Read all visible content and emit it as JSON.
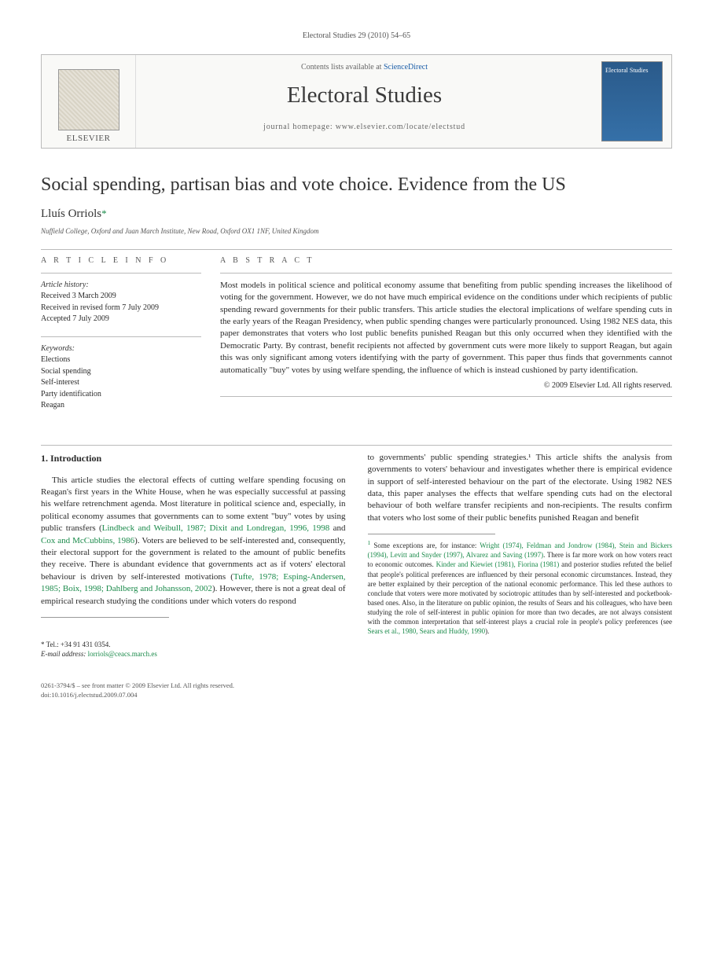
{
  "running_header": "Electoral Studies 29 (2010) 54–65",
  "masthead": {
    "publisher": "ELSEVIER",
    "contents_prefix": "Contents lists available at ",
    "contents_link": "ScienceDirect",
    "journal": "Electoral Studies",
    "homepage_prefix": "journal homepage: ",
    "homepage_url": "www.elsevier.com/locate/electstud",
    "cover_text": "Electoral Studies"
  },
  "title": "Social spending, partisan bias and vote choice. Evidence from the US",
  "author": "Lluís Orriols",
  "author_marker": "*",
  "affiliation": "Nuffield College, Oxford and Juan March Institute, New Road, Oxford OX1 1NF, United Kingdom",
  "info": {
    "label": "A R T I C L E   I N F O",
    "history_heading": "Article history:",
    "history": [
      "Received 3 March 2009",
      "Received in revised form 7 July 2009",
      "Accepted 7 July 2009"
    ],
    "keywords_heading": "Keywords:",
    "keywords": [
      "Elections",
      "Social spending",
      "Self-interest",
      "Party identification",
      "Reagan"
    ]
  },
  "abstract": {
    "label": "A B S T R A C T",
    "text": "Most models in political science and political economy assume that benefiting from public spending increases the likelihood of voting for the government. However, we do not have much empirical evidence on the conditions under which recipients of public spending reward governments for their public transfers. This article studies the electoral implications of welfare spending cuts in the early years of the Reagan Presidency, when public spending changes were particularly pronounced. Using 1982 NES data, this paper demonstrates that voters who lost public benefits punished Reagan but this only occurred when they identified with the Democratic Party. By contrast, benefit recipients not affected by government cuts were more likely to support Reagan, but again this was only significant among voters identifying with the party of government. This paper thus finds that governments cannot automatically \"buy\" votes by using welfare spending, the influence of which is instead cushioned by party identification.",
    "copyright": "© 2009 Elsevier Ltd. All rights reserved."
  },
  "body": {
    "heading": "1. Introduction",
    "col1_text_pre": "This article studies the electoral effects of cutting welfare spending focusing on Reagan's first years in the White House, when he was especially successful at passing his welfare retrenchment agenda. Most literature in political science and, especially, in political economy assumes that governments can to some extent \"buy\" votes by using public transfers (",
    "col1_cite1": "Lindbeck and Weibull, 1987; Dixit and Londregan, 1996, 1998",
    "col1_mid1": " and ",
    "col1_cite2": "Cox and McCubbins, 1986",
    "col1_mid2": "). Voters are believed to be self-interested and, consequently, their electoral support for the government is related to the amount of public benefits they receive. There is abundant evidence that governments act as if voters' electoral behaviour is driven by self-interested motivations (",
    "col1_cite3": "Tufte, 1978; Esping-Andersen, 1985; Boix, 1998; Dahlberg and Johansson, 2002",
    "col1_text_post": "). However, there is not a great deal of empirical research studying the conditions under which voters do respond",
    "col2_text": "to governments' public spending strategies.¹ This article shifts the analysis from governments to voters' behaviour and investigates whether there is empirical evidence in support of self-interested behaviour on the part of the electorate. Using 1982 NES data, this paper analyses the effects that welfare spending cuts had on the electoral behaviour of both welfare transfer recipients and non-recipients. The results confirm that voters who lost some of their public benefits punished Reagan and benefit"
  },
  "footnote": {
    "marker": "1",
    "text_pre": " Some exceptions are, for instance: ",
    "cite1": "Wright (1974), Feldman and Jondrow (1984), Stein and Bickers (1994), Levitt and Snyder (1997), Alvarez and Saving (1997)",
    "mid1": ". There is far more work on how voters react to economic outcomes. ",
    "cite2": "Kinder and Kiewiet (1981), Fiorina (1981)",
    "mid2": " and posterior studies refuted the belief that people's political preferences are influenced by their personal economic circumstances. Instead, they are better explained by their perception of the national economic performance. This led these authors to conclude that voters were more motivated by sociotropic attitudes than by self-interested and pocketbook-based ones. Also, in the literature on public opinion, the results of Sears and his colleagues, who have been studying the role of self-interest in public opinion for more than two decades, are not always consistent with the common interpretation that self-interest plays a crucial role in people's policy preferences (see ",
    "cite3": "Sears et al., 1980, Sears and Huddy, 1990",
    "post": ")."
  },
  "corresp": {
    "tel_label": "* Tel.: ",
    "tel": "+34 91 431 0354.",
    "email_label": "E-mail address: ",
    "email": "lorriols@ceacs.march.es"
  },
  "footer": {
    "line1": "0261-3794/$ – see front matter © 2009 Elsevier Ltd. All rights reserved.",
    "line2": "doi:10.1016/j.electstud.2009.07.004"
  },
  "colors": {
    "link": "#1a5da8",
    "cite": "#1a8a4a",
    "text": "#2a2a2a",
    "rule": "#bbbbbb",
    "cover_bg": "#2a5a8a"
  }
}
